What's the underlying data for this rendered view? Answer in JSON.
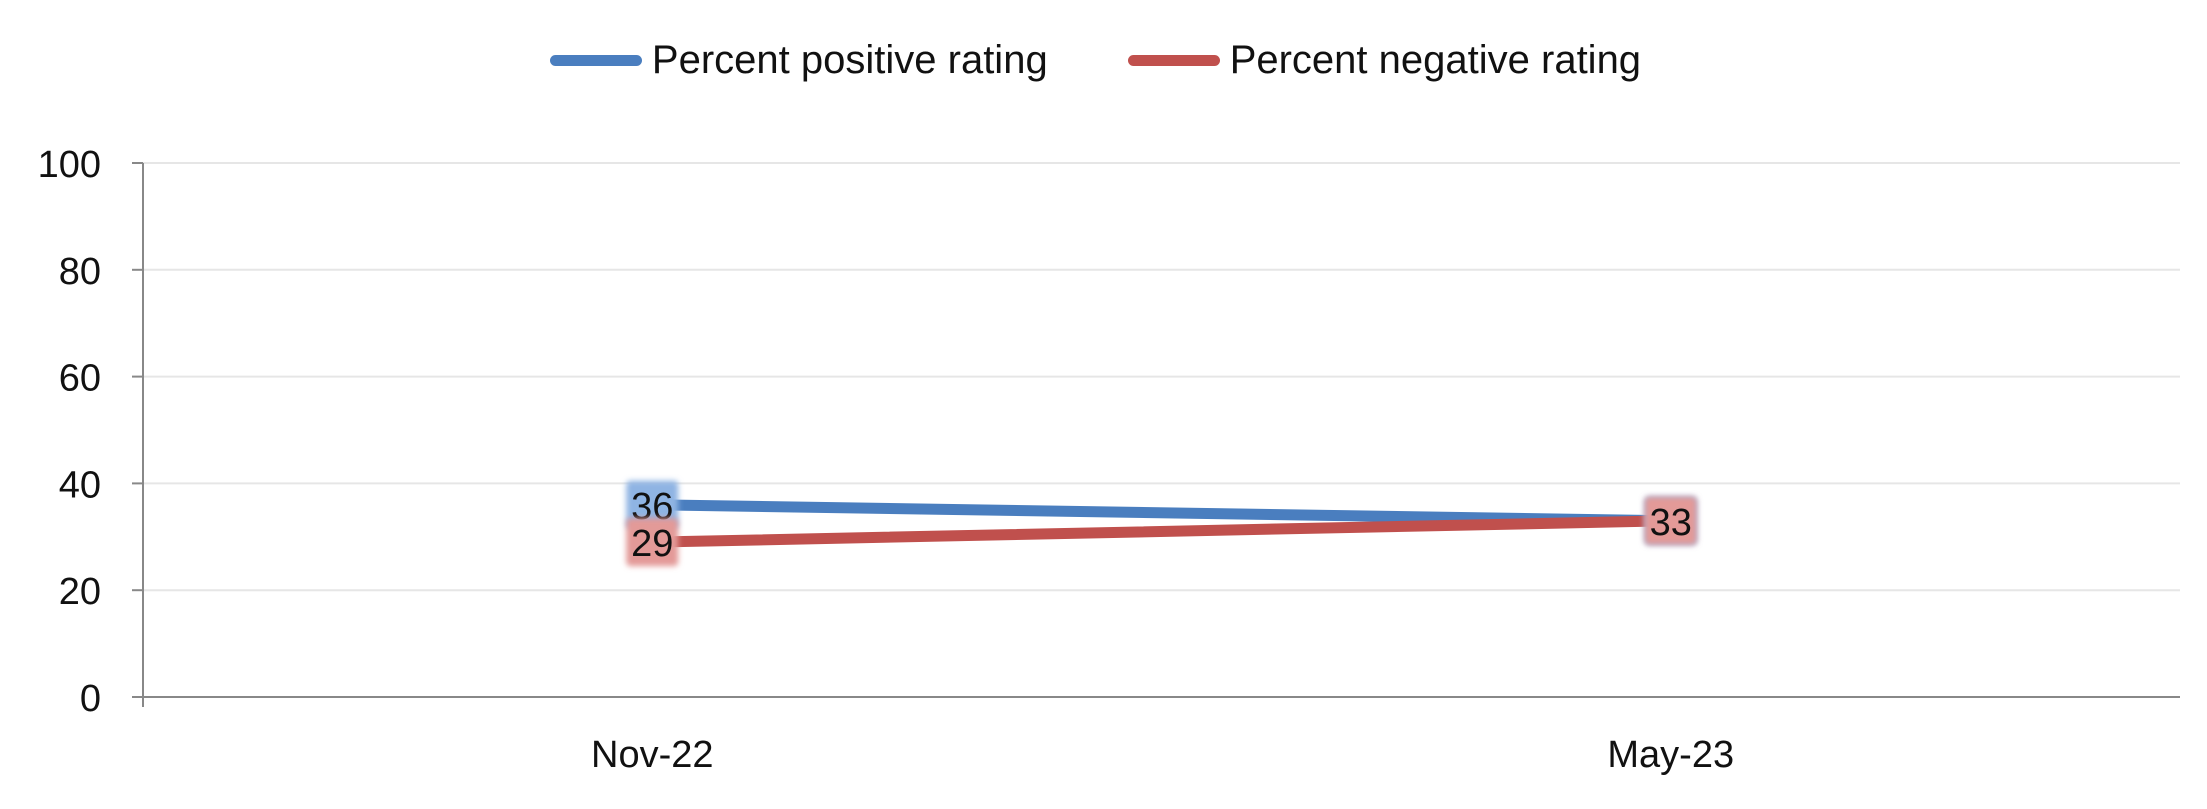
{
  "chart_data": {
    "type": "line",
    "title": "",
    "xlabel": "",
    "ylabel": "",
    "categories": [
      "Nov-22",
      "May-23"
    ],
    "ylim": [
      0,
      100
    ],
    "yticks": [
      0,
      20,
      40,
      60,
      80,
      100
    ],
    "grid": true,
    "legend_position": "top-center",
    "series": [
      {
        "name": "Percent positive rating",
        "values": [
          36,
          33
        ],
        "color": "#4a7ebf",
        "label_bg": "#8fb4e3"
      },
      {
        "name": "Percent negative rating",
        "values": [
          29,
          33
        ],
        "color": "#c0504d",
        "label_bg": "#e39a98"
      }
    ],
    "data_labels": true
  }
}
